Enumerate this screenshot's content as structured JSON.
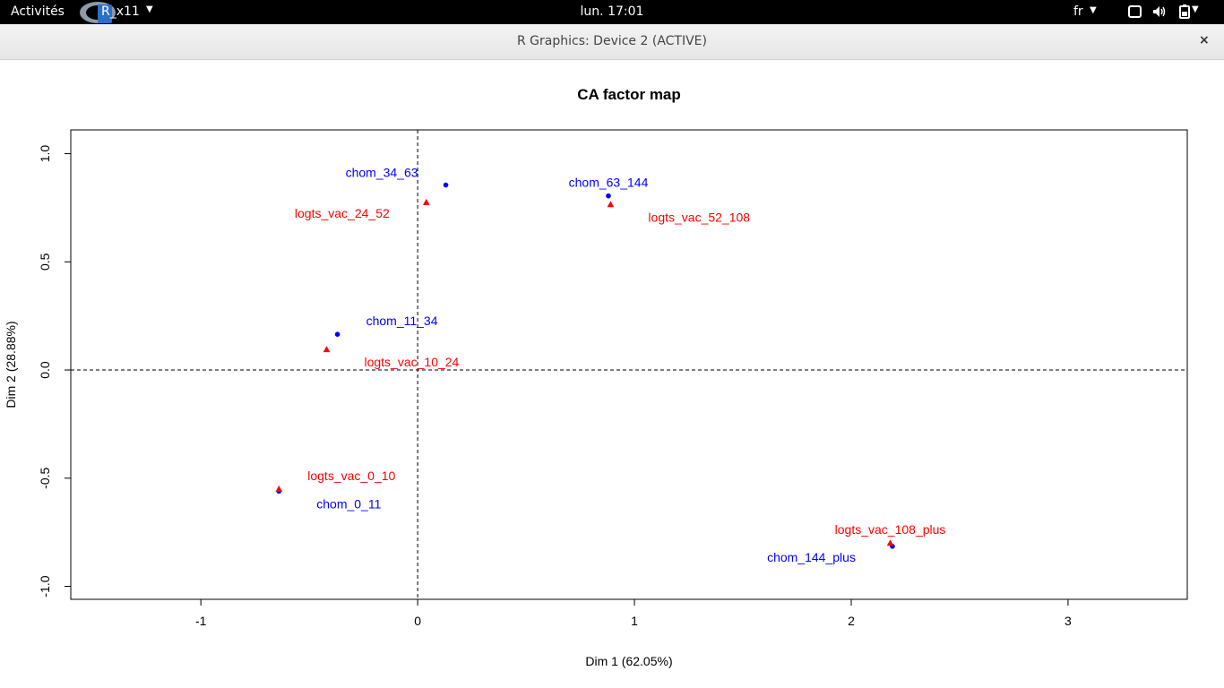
{
  "topbar": {
    "activities": "Activités",
    "app_name": "R_x11",
    "clock": "lun. 17:01",
    "language": "fr"
  },
  "window": {
    "title": "R Graphics: Device 2 (ACTIVE)",
    "close_symbol": "×"
  },
  "chart_data": {
    "type": "scatter",
    "title": "CA factor map",
    "xlabel": "Dim 1 (62.05%)",
    "ylabel": "Dim 2 (28.88%)",
    "xlim": [
      -1.6,
      3.55
    ],
    "ylim": [
      -1.06,
      1.11
    ],
    "xticks": [
      -1,
      0,
      1,
      2,
      3
    ],
    "xtick_labels": [
      "-1",
      "0",
      "1",
      "2",
      "3"
    ],
    "yticks": [
      -1.0,
      -0.5,
      0.0,
      0.5,
      1.0
    ],
    "ytick_labels": [
      "-1.0",
      "-0.5",
      "0.0",
      "0.5",
      "1.0"
    ],
    "reference_lines": [
      {
        "axis": "x",
        "value": 0
      },
      {
        "axis": "y",
        "value": 0
      }
    ],
    "series": [
      {
        "color": "#0000ff",
        "marker": "circle",
        "points": [
          {
            "label": "chom_0_11",
            "x": -0.64,
            "y": -0.56,
            "label_pos": "below-right"
          },
          {
            "label": "chom_11_34",
            "x": -0.37,
            "y": 0.165,
            "label_pos": "above-right"
          },
          {
            "label": "chom_34_63",
            "x": 0.13,
            "y": 0.855,
            "label_pos": "above-left"
          },
          {
            "label": "chom_63_144",
            "x": 0.88,
            "y": 0.805,
            "label_pos": "above"
          },
          {
            "label": "chom_144_plus",
            "x": 2.19,
            "y": -0.815,
            "label_pos": "below-left"
          }
        ]
      },
      {
        "color": "#ff0000",
        "marker": "triangle",
        "points": [
          {
            "label": "logts_vac_0_10",
            "x": -0.64,
            "y": -0.55,
            "label_pos": "above-right"
          },
          {
            "label": "logts_vac_10_24",
            "x": -0.42,
            "y": 0.095,
            "label_pos": "below-right"
          },
          {
            "label": "logts_vac_24_52",
            "x": 0.04,
            "y": 0.775,
            "label_pos": "below-left"
          },
          {
            "label": "logts_vac_52_108",
            "x": 0.89,
            "y": 0.765,
            "label_pos": "below-right"
          },
          {
            "label": "logts_vac_108_plus",
            "x": 2.18,
            "y": -0.8,
            "label_pos": "above"
          }
        ]
      }
    ]
  }
}
